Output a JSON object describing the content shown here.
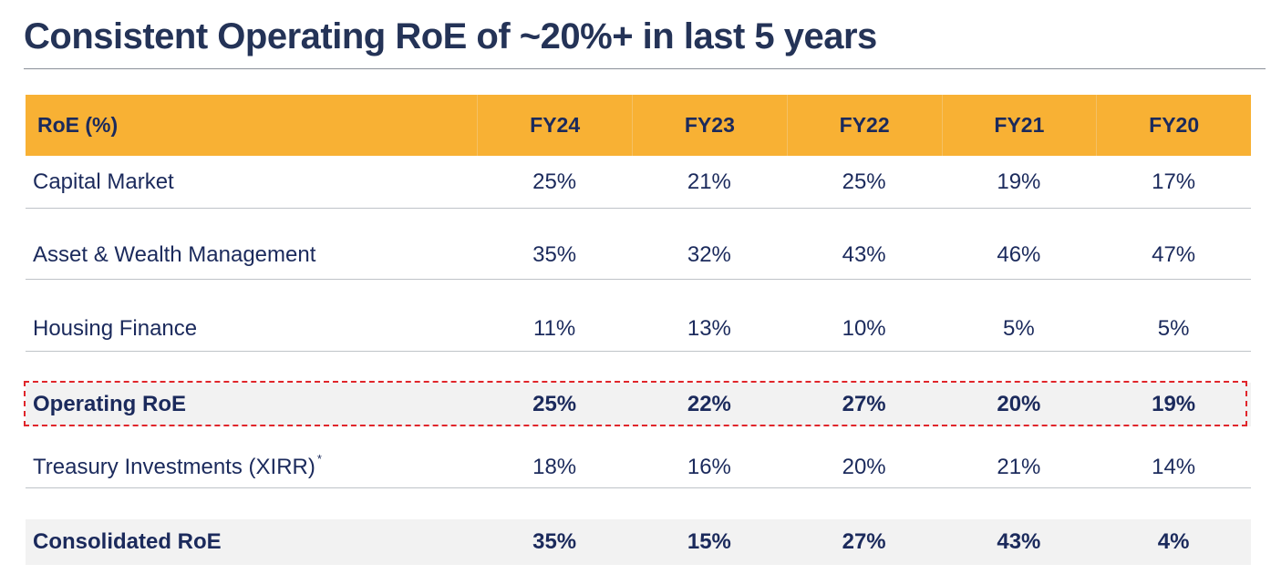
{
  "title": "Consistent Operating RoE of ~20%+ in last 5 years",
  "colors": {
    "header_bg": "#f8b134",
    "text": "#1b2a5c",
    "highlight_border": "#e0262b",
    "shaded_row": "#f2f2f2"
  },
  "table": {
    "header": {
      "label": "RoE (%)",
      "years": [
        "FY24",
        "FY23",
        "FY22",
        "FY21",
        "FY20"
      ]
    },
    "rows": [
      {
        "label": "Capital Market",
        "footnote": "",
        "values": [
          "25%",
          "21%",
          "25%",
          "19%",
          "17%"
        ],
        "bold": false,
        "highlighted": false
      },
      {
        "label": "Asset & Wealth Management",
        "footnote": "",
        "values": [
          "35%",
          "32%",
          "43%",
          "46%",
          "47%"
        ],
        "bold": false,
        "highlighted": false
      },
      {
        "label": "Housing Finance",
        "footnote": "",
        "values": [
          "11%",
          "13%",
          "10%",
          "5%",
          "5%"
        ],
        "bold": false,
        "highlighted": false
      },
      {
        "label": "Operating RoE",
        "footnote": "",
        "values": [
          "25%",
          "22%",
          "27%",
          "20%",
          "19%"
        ],
        "bold": true,
        "highlighted": true
      },
      {
        "label": "Treasury Investments (XIRR)",
        "footnote": "*",
        "values": [
          "18%",
          "16%",
          "20%",
          "21%",
          "14%"
        ],
        "bold": false,
        "highlighted": false
      },
      {
        "label": "Consolidated RoE",
        "footnote": "",
        "values": [
          "35%",
          "15%",
          "27%",
          "43%",
          "4%"
        ],
        "bold": true,
        "highlighted": false
      }
    ]
  }
}
